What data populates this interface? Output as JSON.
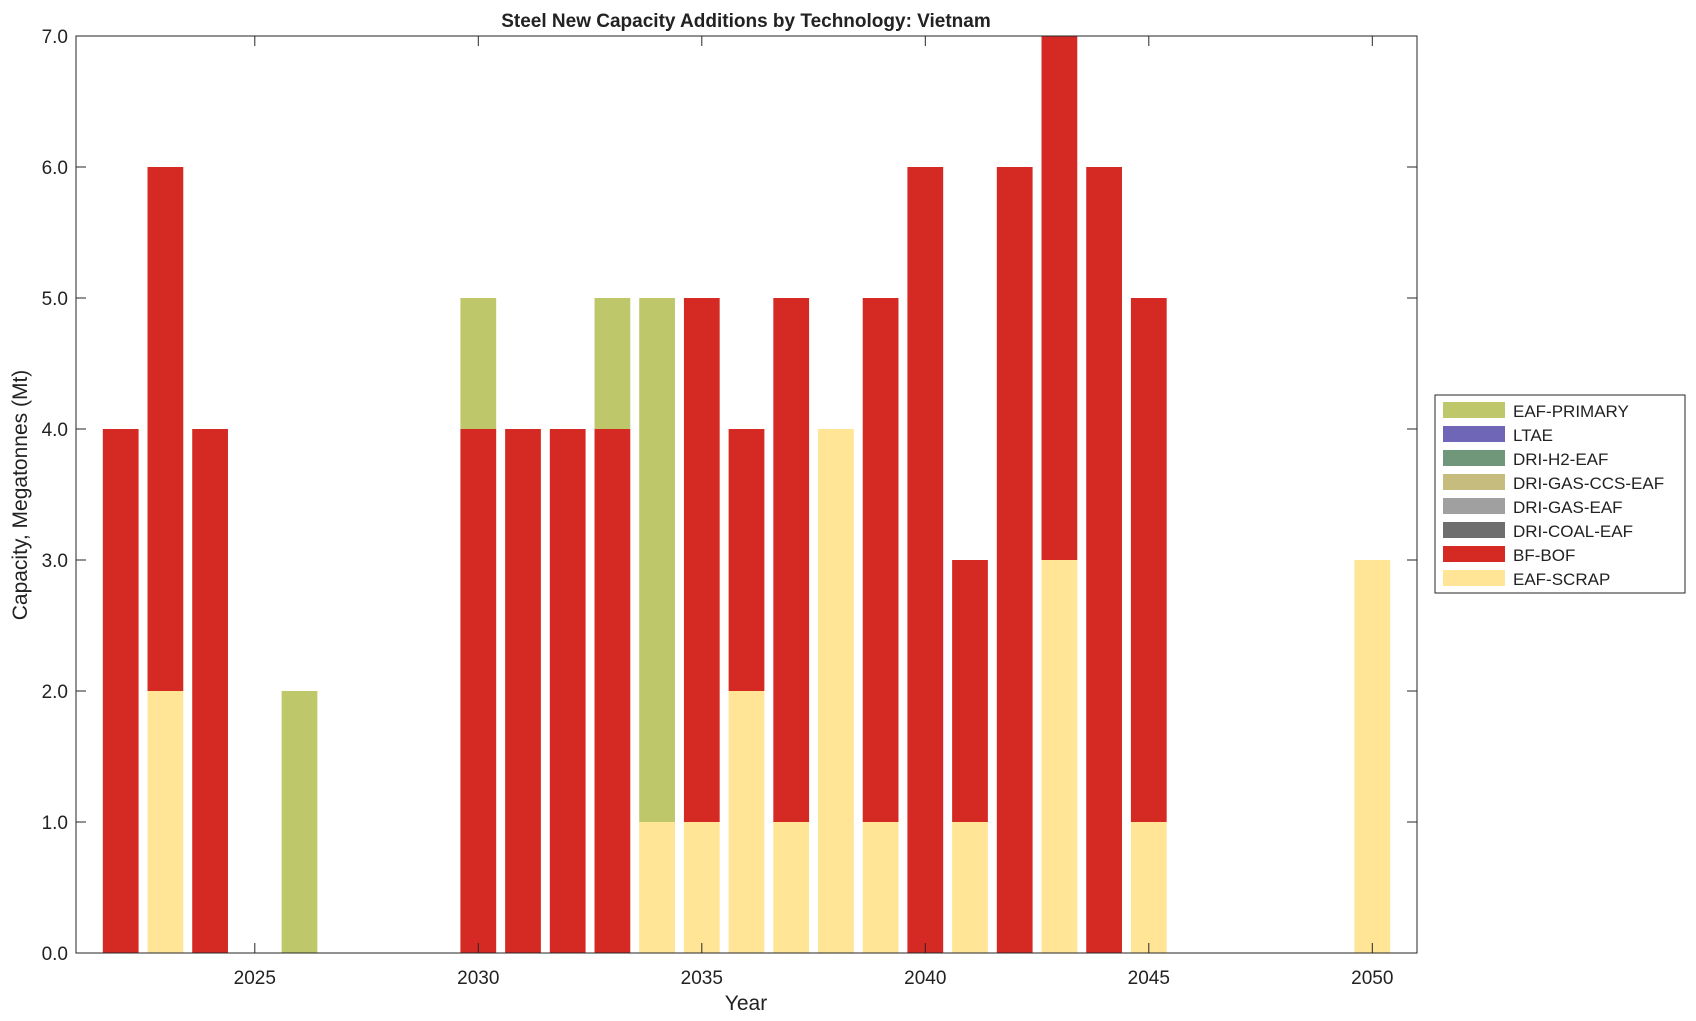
{
  "chart_data": {
    "type": "bar",
    "stacked": true,
    "title": "Steel New Capacity Additions by Technology: Vietnam",
    "xlabel": "Year",
    "ylabel": "Capacity, Megatonnes (Mt)",
    "xlim": [
      2021,
      2051
    ],
    "ylim": [
      0,
      7
    ],
    "xticks": [
      2025,
      2030,
      2035,
      2040,
      2045,
      2050
    ],
    "yticks": [
      "0.0",
      "1.0",
      "2.0",
      "3.0",
      "4.0",
      "5.0",
      "6.0",
      "7.0"
    ],
    "legend_position": "right",
    "x": [
      2022,
      2023,
      2024,
      2026,
      2030,
      2031,
      2032,
      2033,
      2034,
      2035,
      2036,
      2037,
      2038,
      2039,
      2040,
      2041,
      2042,
      2043,
      2044,
      2045,
      2050
    ],
    "series": [
      {
        "name": "EAF-SCRAP",
        "color": "#FFE595",
        "values": [
          0,
          2,
          0,
          0,
          0,
          0,
          0,
          0,
          1,
          1,
          2,
          1,
          4,
          1,
          0,
          1,
          0,
          3,
          0,
          1,
          3
        ]
      },
      {
        "name": "BF-BOF",
        "color": "#D42A23",
        "values": [
          4,
          4,
          4,
          0,
          4,
          4,
          4,
          4,
          0,
          4,
          2,
          4,
          0,
          4,
          6,
          2,
          6,
          4,
          6,
          4,
          0
        ]
      },
      {
        "name": "DRI-COAL-EAF",
        "color": "#6E6E6E",
        "values": [
          0,
          0,
          0,
          0,
          0,
          0,
          0,
          0,
          0,
          0,
          0,
          0,
          0,
          0,
          0,
          0,
          0,
          0,
          0,
          0,
          0
        ]
      },
      {
        "name": "DRI-GAS-EAF",
        "color": "#A0A0A0",
        "values": [
          0,
          0,
          0,
          0,
          0,
          0,
          0,
          0,
          0,
          0,
          0,
          0,
          0,
          0,
          0,
          0,
          0,
          0,
          0,
          0,
          0
        ]
      },
      {
        "name": "DRI-GAS-CCS-EAF",
        "color": "#C5BC7D",
        "values": [
          0,
          0,
          0,
          0,
          0,
          0,
          0,
          0,
          0,
          0,
          0,
          0,
          0,
          0,
          0,
          0,
          0,
          0,
          0,
          0,
          0
        ]
      },
      {
        "name": "DRI-H2-EAF",
        "color": "#71977A",
        "values": [
          0,
          0,
          0,
          0,
          0,
          0,
          0,
          0,
          0,
          0,
          0,
          0,
          0,
          0,
          0,
          0,
          0,
          0,
          0,
          0,
          0
        ]
      },
      {
        "name": "LTAE",
        "color": "#7066B7",
        "values": [
          0,
          0,
          0,
          0,
          0,
          0,
          0,
          0,
          0,
          0,
          0,
          0,
          0,
          0,
          0,
          0,
          0,
          0,
          0,
          0,
          0
        ]
      },
      {
        "name": "EAF-PRIMARY",
        "color": "#BEC86B",
        "values": [
          0,
          0,
          0,
          2,
          1,
          0,
          0,
          1,
          4,
          0,
          0,
          0,
          0,
          0,
          0,
          0,
          0,
          0,
          0,
          0,
          0
        ]
      }
    ]
  }
}
